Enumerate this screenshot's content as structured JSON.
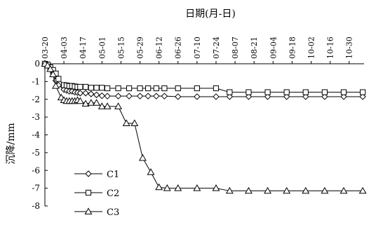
{
  "chart_data": {
    "type": "line",
    "title": "",
    "xlabel": "日期(月-日)",
    "ylabel": "沉降/mm",
    "x_axis_position": "top",
    "ylim": [
      -8,
      0
    ],
    "yticks": [
      0,
      -1,
      -2,
      -3,
      -4,
      -5,
      -6,
      -7,
      -8
    ],
    "xlim": [
      "03-20",
      "11-10"
    ],
    "xtick_labels": [
      "03-20",
      "04-03",
      "04-17",
      "05-01",
      "05-15",
      "05-29",
      "06-12",
      "06-26",
      "07-10",
      "07-24",
      "08-07",
      "08-21",
      "09-04",
      "09-18",
      "10-02",
      "10-16",
      "10-30"
    ],
    "grid": false,
    "legend_position": "bottom-left",
    "series": [
      {
        "name": "C1",
        "marker": "diamond",
        "points": [
          [
            "03-20",
            0
          ],
          [
            "03-22",
            -0.05
          ],
          [
            "03-24",
            -0.2
          ],
          [
            "03-26",
            -0.55
          ],
          [
            "03-28",
            -0.95
          ],
          [
            "03-30",
            -1.2
          ],
          [
            "04-03",
            -1.45
          ],
          [
            "04-05",
            -1.5
          ],
          [
            "04-07",
            -1.55
          ],
          [
            "04-09",
            -1.55
          ],
          [
            "04-11",
            -1.6
          ],
          [
            "04-13",
            -1.62
          ],
          [
            "04-15",
            -1.65
          ],
          [
            "04-19",
            -1.65
          ],
          [
            "04-23",
            -1.7
          ],
          [
            "04-27",
            -1.75
          ],
          [
            "05-01",
            -1.8
          ],
          [
            "05-05",
            -1.82
          ],
          [
            "05-13",
            -1.82
          ],
          [
            "05-21",
            -1.82
          ],
          [
            "05-29",
            -1.82
          ],
          [
            "06-04",
            -1.82
          ],
          [
            "06-10",
            -1.82
          ],
          [
            "06-16",
            -1.82
          ],
          [
            "06-26",
            -1.85
          ],
          [
            "07-10",
            -1.85
          ],
          [
            "07-24",
            -1.85
          ],
          [
            "08-03",
            -1.85
          ],
          [
            "08-17",
            -1.85
          ],
          [
            "08-31",
            -1.85
          ],
          [
            "09-14",
            -1.85
          ],
          [
            "09-28",
            -1.85
          ],
          [
            "10-12",
            -1.85
          ],
          [
            "10-26",
            -1.85
          ],
          [
            "11-09",
            -1.85
          ]
        ]
      },
      {
        "name": "C2",
        "marker": "square",
        "points": [
          [
            "03-20",
            0
          ],
          [
            "03-22",
            -0.05
          ],
          [
            "03-24",
            -0.2
          ],
          [
            "03-26",
            -0.35
          ],
          [
            "03-28",
            -0.55
          ],
          [
            "03-30",
            -0.85
          ],
          [
            "04-03",
            -1.2
          ],
          [
            "04-05",
            -1.22
          ],
          [
            "04-07",
            -1.25
          ],
          [
            "04-09",
            -1.25
          ],
          [
            "04-11",
            -1.28
          ],
          [
            "04-13",
            -1.3
          ],
          [
            "04-15",
            -1.3
          ],
          [
            "04-19",
            -1.3
          ],
          [
            "04-23",
            -1.35
          ],
          [
            "04-27",
            -1.35
          ],
          [
            "05-01",
            -1.35
          ],
          [
            "05-05",
            -1.38
          ],
          [
            "05-13",
            -1.38
          ],
          [
            "05-21",
            -1.38
          ],
          [
            "05-29",
            -1.38
          ],
          [
            "06-04",
            -1.38
          ],
          [
            "06-10",
            -1.38
          ],
          [
            "06-16",
            -1.38
          ],
          [
            "06-26",
            -1.38
          ],
          [
            "07-10",
            -1.38
          ],
          [
            "07-24",
            -1.38
          ],
          [
            "08-03",
            -1.6
          ],
          [
            "08-17",
            -1.6
          ],
          [
            "08-31",
            -1.6
          ],
          [
            "09-14",
            -1.6
          ],
          [
            "09-28",
            -1.6
          ],
          [
            "10-12",
            -1.6
          ],
          [
            "10-26",
            -1.6
          ],
          [
            "11-09",
            -1.6
          ]
        ]
      },
      {
        "name": "C3",
        "marker": "triangle",
        "points": [
          [
            "03-20",
            0
          ],
          [
            "03-22",
            -0.1
          ],
          [
            "03-24",
            -0.3
          ],
          [
            "03-26",
            -0.6
          ],
          [
            "03-28",
            -1.25
          ],
          [
            "04-01",
            -1.9
          ],
          [
            "04-03",
            -2.05
          ],
          [
            "04-05",
            -2.1
          ],
          [
            "04-07",
            -2.1
          ],
          [
            "04-09",
            -2.1
          ],
          [
            "04-11",
            -2.1
          ],
          [
            "04-13",
            -2.05
          ],
          [
            "04-15",
            -2.1
          ],
          [
            "04-19",
            -2.25
          ],
          [
            "04-23",
            -2.2
          ],
          [
            "04-27",
            -2.2
          ],
          [
            "05-01",
            -2.4
          ],
          [
            "05-05",
            -2.4
          ],
          [
            "05-13",
            -2.4
          ],
          [
            "05-19",
            -3.35
          ],
          [
            "05-25",
            -3.35
          ],
          [
            "05-31",
            -5.3
          ],
          [
            "06-06",
            -6.1
          ],
          [
            "06-12",
            -6.95
          ],
          [
            "06-18",
            -7.0
          ],
          [
            "06-26",
            -7.0
          ],
          [
            "07-10",
            -7.0
          ],
          [
            "07-24",
            -7.0
          ],
          [
            "08-03",
            -7.15
          ],
          [
            "08-17",
            -7.15
          ],
          [
            "08-31",
            -7.15
          ],
          [
            "09-14",
            -7.15
          ],
          [
            "09-28",
            -7.15
          ],
          [
            "10-12",
            -7.15
          ],
          [
            "10-26",
            -7.15
          ],
          [
            "11-09",
            -7.15
          ]
        ]
      }
    ]
  }
}
